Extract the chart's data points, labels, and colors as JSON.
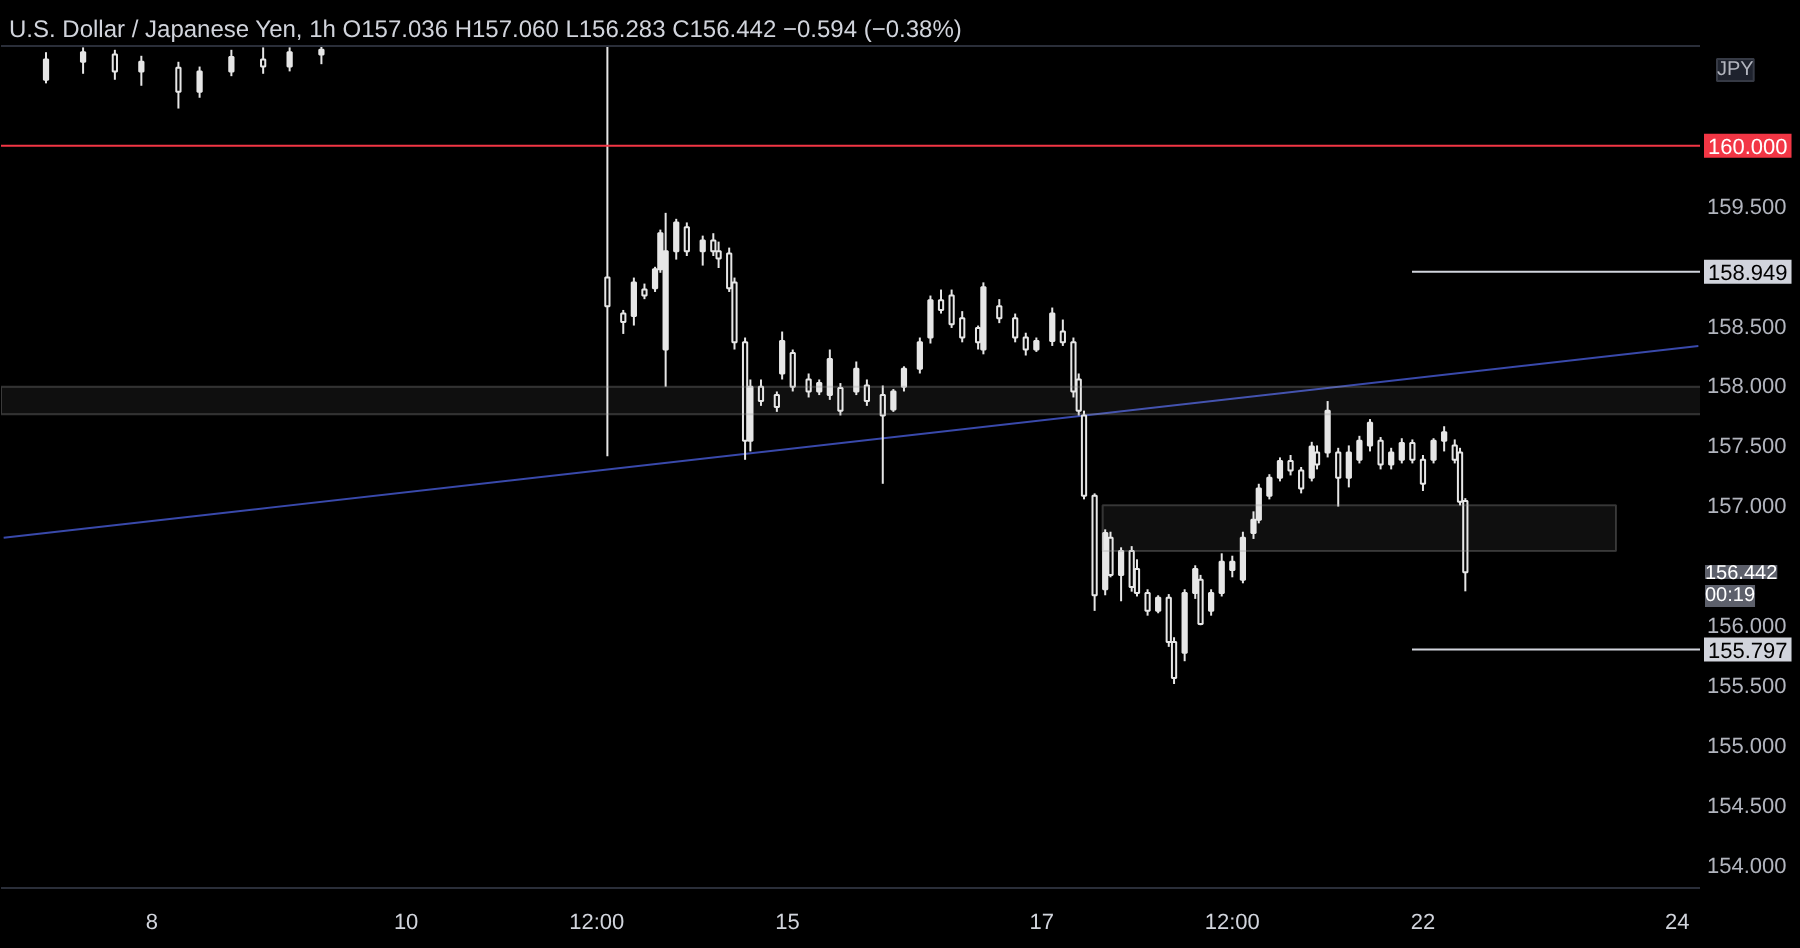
{
  "chart_data": {
    "type": "candlestick",
    "title": "U.S. Dollar / Japanese Yen, 1h",
    "subtitle": "O157.036 H157.060 L156.283 C156.442 −0.594 (−0.38%)",
    "color": "#e6e6e6",
    "categories": [
      null,
      null,
      null,
      null,
      null,
      null,
      null,
      null,
      null,
      null,
      null,
      null,
      null,
      null,
      null,
      null,
      null,
      null,
      null,
      null,
      null,
      null,
      null,
      null,
      null,
      null,
      null,
      null,
      "8",
      null,
      null,
      null,
      null,
      null,
      null,
      null,
      null,
      null,
      null,
      null,
      null,
      null,
      null,
      null,
      null,
      null,
      null,
      null,
      null,
      null,
      null,
      null,
      null,
      null,
      null,
      null,
      null,
      null,
      null,
      null,
      null,
      null,
      null,
      null,
      null,
      null,
      null,
      null,
      null,
      null,
      null,
      null,
      null,
      null,
      null,
      null,
      "10",
      null,
      null,
      null,
      null,
      null,
      null,
      null,
      null,
      null,
      null,
      null,
      null,
      null,
      null,
      null,
      null,
      null,
      null,
      null,
      null,
      null,
      null,
      null,
      null,
      null,
      null,
      null,
      null,
      null,
      null,
      null,
      null,
      null,
      null,
      null,
      "12:00",
      null,
      null,
      null,
      null,
      null,
      null,
      null,
      null,
      null,
      null,
      null,
      null,
      null,
      null,
      null,
      null,
      null,
      null,
      null,
      null,
      null,
      null,
      null,
      null,
      null,
      null,
      null,
      null,
      null,
      null,
      null,
      null,
      null,
      null,
      null,
      "15",
      null,
      null,
      null,
      null,
      null,
      null,
      null,
      null,
      null,
      null,
      null,
      null,
      null,
      null,
      null,
      null,
      null,
      null,
      null,
      null,
      null,
      null,
      null,
      null,
      null,
      null,
      null,
      null,
      null,
      null,
      null,
      null,
      null,
      null,
      null,
      null,
      null,
      null,
      null,
      null,
      null,
      null,
      null,
      null,
      null,
      null,
      null,
      "17",
      null,
      null,
      null,
      null,
      null,
      null,
      null,
      null,
      null,
      null,
      null,
      null,
      null,
      null,
      null,
      null,
      null,
      null,
      null,
      null,
      null,
      null,
      null,
      null,
      null,
      null,
      null,
      null,
      null,
      null,
      null,
      null,
      null,
      null,
      null,
      "12:00",
      null,
      null,
      null,
      null,
      null,
      null,
      null,
      null,
      null,
      null,
      null,
      null,
      null,
      null,
      null,
      null,
      null,
      null,
      null,
      null,
      null,
      null,
      null,
      null,
      null,
      null,
      null,
      null,
      null,
      null,
      null,
      null,
      null,
      null,
      null,
      "22",
      null,
      null,
      null,
      null,
      null,
      null,
      null,
      null,
      null,
      null,
      null,
      null,
      null,
      null,
      null,
      null,
      null,
      null,
      null,
      null,
      null,
      null,
      null,
      null,
      null,
      null,
      null,
      null,
      null,
      null,
      null,
      null,
      null,
      null,
      null,
      null,
      null,
      null,
      null,
      null,
      null,
      null,
      null,
      null,
      null,
      null,
      null,
      "24",
      null,
      null,
      null,
      null
    ],
    "ohlc": [
      null,
      null,
      null,
      null,
      null,
      null,
      null,
      null,
      [
        160.55,
        160.78,
        160.52,
        160.72
      ],
      null,
      null,
      null,
      null,
      null,
      null,
      [
        160.7,
        160.82,
        160.6,
        160.78
      ],
      null,
      null,
      null,
      null,
      null,
      [
        160.76,
        160.8,
        160.55,
        160.62
      ],
      null,
      null,
      null,
      null,
      [
        160.62,
        160.75,
        160.5,
        160.7
      ],
      null,
      null,
      null,
      null,
      null,
      null,
      [
        160.65,
        160.7,
        160.31,
        160.45
      ],
      null,
      null,
      null,
      [
        160.45,
        160.66,
        160.4,
        160.62
      ],
      null,
      null,
      null,
      null,
      null,
      [
        160.62,
        160.8,
        160.58,
        160.74
      ],
      null,
      null,
      null,
      null,
      null,
      [
        160.72,
        160.82,
        160.6,
        160.66
      ],
      null,
      null,
      null,
      null,
      [
        160.66,
        160.82,
        160.62,
        160.78
      ],
      null,
      null,
      null,
      null,
      null,
      [
        160.76,
        160.83,
        160.68,
        160.8
      ],
      null,
      null,
      null,
      null,
      null,
      null,
      null,
      null,
      null,
      null,
      null,
      null,
      null,
      null,
      null,
      null,
      null,
      null,
      null,
      null,
      null,
      null,
      null,
      null,
      null,
      null,
      null,
      null,
      null,
      null,
      null,
      null,
      null,
      null,
      null,
      null,
      null,
      null,
      null,
      null,
      null,
      null,
      null,
      null,
      null,
      null,
      null,
      null,
      null,
      null,
      null,
      null,
      null,
      [
        158.9,
        160.84,
        157.41,
        158.66
      ],
      null,
      null,
      [
        158.6,
        158.63,
        158.43,
        158.53
      ],
      null,
      [
        158.58,
        158.9,
        158.5,
        158.86
      ],
      null,
      [
        158.8,
        158.85,
        158.72,
        158.75
      ],
      null,
      [
        158.81,
        158.99,
        158.78,
        158.97
      ],
      [
        158.97,
        159.3,
        158.94,
        159.27
      ],
      [
        158.3,
        159.44,
        157.99,
        159.12
      ],
      null,
      [
        159.12,
        159.39,
        159.05,
        159.36
      ],
      null,
      [
        159.32,
        159.36,
        159.08,
        159.12
      ],
      null,
      null,
      [
        159.12,
        159.25,
        159.0,
        159.21
      ],
      null,
      [
        159.21,
        159.27,
        159.08,
        159.12
      ],
      [
        159.12,
        159.2,
        158.98,
        159.06
      ],
      null,
      [
        159.1,
        159.15,
        158.78,
        158.81
      ],
      [
        158.86,
        158.9,
        158.3,
        158.36
      ],
      null,
      [
        158.36,
        158.4,
        157.38,
        157.54
      ],
      [
        157.54,
        158.05,
        157.45,
        157.99
      ],
      null,
      [
        157.99,
        158.05,
        157.83,
        157.87
      ],
      null,
      null,
      [
        157.92,
        157.95,
        157.78,
        157.82
      ],
      [
        158.1,
        158.45,
        158.05,
        158.37
      ],
      null,
      [
        158.27,
        158.3,
        157.95,
        157.99
      ],
      null,
      null,
      [
        158.05,
        158.1,
        157.9,
        157.95
      ],
      null,
      [
        157.95,
        158.05,
        157.92,
        158.02
      ],
      null,
      [
        157.92,
        158.3,
        157.88,
        158.22
      ],
      null,
      [
        157.98,
        158.02,
        157.75,
        157.79
      ],
      null,
      null,
      [
        157.95,
        158.2,
        157.92,
        158.14
      ],
      null,
      [
        158.0,
        158.05,
        157.83,
        157.87
      ],
      null,
      null,
      [
        157.92,
        158.0,
        157.18,
        157.75
      ],
      null,
      [
        157.8,
        157.97,
        157.78,
        157.95
      ],
      null,
      [
        157.99,
        158.16,
        157.95,
        158.14
      ],
      null,
      null,
      [
        158.14,
        158.4,
        158.1,
        158.36
      ],
      null,
      [
        158.4,
        158.75,
        158.35,
        158.71
      ],
      null,
      [
        158.71,
        158.8,
        158.6,
        158.63
      ],
      null,
      [
        158.75,
        158.8,
        158.48,
        158.51
      ],
      null,
      [
        158.56,
        158.62,
        158.36,
        158.4
      ],
      null,
      null,
      [
        158.48,
        158.5,
        158.3,
        158.36
      ],
      [
        158.3,
        158.86,
        158.26,
        158.82
      ],
      null,
      null,
      [
        158.66,
        158.72,
        158.52,
        158.56
      ],
      null,
      null,
      [
        158.56,
        158.6,
        158.36,
        158.4
      ],
      null,
      [
        158.4,
        158.44,
        158.25,
        158.3
      ],
      null,
      [
        158.3,
        158.4,
        158.28,
        158.37
      ],
      null,
      null,
      [
        158.37,
        158.65,
        158.33,
        158.6
      ],
      null,
      [
        158.45,
        158.55,
        158.33,
        158.36
      ],
      null,
      [
        158.36,
        158.4,
        157.9,
        157.95
      ],
      [
        158.05,
        158.1,
        157.75,
        157.79
      ],
      [
        157.75,
        157.79,
        157.05,
        157.08
      ],
      null,
      [
        157.08,
        157.1,
        156.12,
        156.25
      ],
      null,
      [
        156.3,
        156.8,
        156.25,
        156.77
      ],
      [
        156.73,
        156.78,
        156.4,
        156.42
      ],
      null,
      [
        156.42,
        156.65,
        156.2,
        156.62
      ],
      null,
      [
        156.62,
        156.66,
        156.28,
        156.32
      ],
      [
        156.47,
        156.55,
        156.24,
        156.27
      ],
      null,
      [
        156.27,
        156.3,
        156.08,
        156.12
      ],
      null,
      [
        156.12,
        156.25,
        156.1,
        156.23
      ],
      null,
      [
        156.23,
        156.26,
        155.82,
        155.86
      ],
      [
        155.86,
        155.9,
        155.51,
        155.56
      ],
      null,
      [
        155.77,
        156.3,
        155.7,
        156.27
      ],
      null,
      [
        156.27,
        156.5,
        156.22,
        156.47
      ],
      [
        156.38,
        156.42,
        156.0,
        156.01
      ],
      null,
      [
        156.12,
        156.3,
        156.08,
        156.27
      ],
      null,
      [
        156.27,
        156.6,
        156.24,
        156.53
      ],
      null,
      [
        156.46,
        156.58,
        156.4,
        156.53
      ],
      null,
      [
        156.38,
        156.78,
        156.35,
        156.73
      ],
      null,
      [
        156.77,
        156.95,
        156.72,
        156.88
      ],
      [
        156.88,
        157.18,
        156.85,
        157.14
      ],
      null,
      [
        157.08,
        157.26,
        157.05,
        157.23
      ],
      null,
      [
        157.23,
        157.4,
        157.2,
        157.37
      ],
      null,
      [
        157.37,
        157.42,
        157.25,
        157.29
      ],
      null,
      [
        157.29,
        157.32,
        157.1,
        157.14
      ],
      null,
      [
        157.23,
        157.53,
        157.2,
        157.49
      ],
      [
        157.44,
        157.5,
        157.3,
        157.34
      ],
      null,
      [
        157.44,
        157.87,
        157.4,
        157.79
      ],
      null,
      [
        157.44,
        157.48,
        156.99,
        157.23
      ],
      null,
      [
        157.23,
        157.5,
        157.15,
        157.44
      ],
      null,
      [
        157.38,
        157.58,
        157.35,
        157.54
      ],
      null,
      [
        157.5,
        157.72,
        157.45,
        157.69
      ],
      null,
      [
        157.54,
        157.57,
        157.3,
        157.34
      ],
      null,
      [
        157.34,
        157.48,
        157.3,
        157.44
      ],
      null,
      [
        157.38,
        157.56,
        157.35,
        157.52
      ],
      null,
      [
        157.52,
        157.55,
        157.35,
        157.38
      ],
      null,
      [
        157.38,
        157.42,
        157.12,
        157.18
      ],
      null,
      [
        157.38,
        157.56,
        157.35,
        157.54
      ],
      null,
      [
        157.54,
        157.66,
        157.45,
        157.61
      ],
      null,
      [
        157.5,
        157.55,
        157.35,
        157.38
      ],
      [
        157.44,
        157.48,
        157.0,
        157.03
      ],
      [
        157.036,
        157.06,
        156.283,
        156.442
      ],
      null,
      null,
      null,
      null,
      null,
      null,
      null,
      null,
      null,
      null,
      null,
      null,
      null,
      null,
      null,
      null,
      null,
      null,
      null,
      null,
      null,
      null,
      null,
      null,
      null,
      null,
      null,
      null,
      null,
      null,
      null,
      null,
      null,
      null,
      null,
      null,
      null,
      null,
      null,
      null,
      null,
      null,
      null,
      null
    ],
    "series": [
      {
        "type": "line",
        "color": "#3949ab",
        "values": [
          156.73,
          null,
          null,
          null,
          null,
          null,
          null,
          null,
          null,
          null,
          null,
          null,
          null,
          null,
          null,
          null,
          null,
          null,
          null,
          null,
          null,
          null,
          null,
          null,
          null,
          null,
          null,
          null,
          null,
          null,
          null,
          null,
          null,
          null,
          null,
          null,
          null,
          null,
          null,
          null,
          null,
          null,
          null,
          null,
          null,
          null,
          null,
          null,
          null,
          null,
          null,
          null,
          null,
          null,
          null,
          null,
          null,
          null,
          null,
          null,
          null,
          null,
          null,
          null,
          null,
          null,
          null,
          null,
          null,
          null,
          null,
          null,
          null,
          null,
          null,
          null,
          null,
          null,
          null,
          null,
          null,
          null,
          null,
          null,
          null,
          null,
          null,
          null,
          null,
          null,
          null,
          null,
          null,
          null,
          null,
          null,
          null,
          null,
          null,
          null,
          null,
          null,
          null,
          null,
          null,
          null,
          null,
          null,
          null,
          null,
          null,
          null,
          null,
          null,
          null,
          null,
          null,
          null,
          null,
          null,
          null,
          null,
          null,
          null,
          null,
          null,
          null,
          null,
          null,
          null,
          null,
          null,
          null,
          null,
          null,
          null,
          null,
          null,
          null,
          null,
          null,
          null,
          null,
          null,
          null,
          null,
          null,
          null,
          null,
          null,
          null,
          null,
          null,
          null,
          null,
          null,
          null,
          null,
          null,
          null,
          null,
          null,
          null,
          null,
          null,
          null,
          null,
          null,
          null,
          null,
          null,
          null,
          null,
          null,
          null,
          null,
          null,
          null,
          null,
          null,
          null,
          null,
          null,
          null,
          null,
          null,
          null,
          null,
          null,
          null,
          null,
          null,
          null,
          null,
          null,
          null,
          null,
          null,
          null,
          null,
          null,
          null,
          null,
          null,
          null,
          null,
          null,
          null,
          null,
          null,
          null,
          null,
          null,
          null,
          null,
          null,
          null,
          null,
          null,
          null,
          null,
          null,
          null,
          null,
          null,
          null,
          null,
          null,
          null,
          null,
          null,
          null,
          null,
          null,
          null,
          null,
          null,
          null,
          null,
          null,
          null,
          null,
          null,
          null,
          null,
          null,
          null,
          null,
          null,
          null,
          null,
          null,
          null,
          null,
          null,
          null,
          null,
          null,
          null,
          null,
          null,
          null,
          null,
          null,
          null,
          null,
          null,
          null,
          null,
          null,
          null,
          null,
          null,
          null,
          null,
          null,
          null,
          null,
          null,
          null,
          null,
          null,
          null,
          null,
          null,
          null,
          null,
          null,
          null,
          null,
          null,
          null,
          null,
          null,
          null,
          null,
          null,
          null,
          null,
          null,
          null,
          null,
          null,
          null,
          null,
          null,
          null,
          null,
          null,
          null,
          null,
          null,
          null,
          null,
          null,
          null,
          null,
          null,
          null,
          null,
          158.33
        ]
      }
    ],
    "ylim": [
      153.8,
      160.84
    ],
    "yticks": [
      {
        "value": 154,
        "label": "154.000"
      },
      {
        "value": 154.5,
        "label": "154.500"
      },
      {
        "value": 155,
        "label": "155.000"
      },
      {
        "value": 155.5,
        "label": "155.500"
      },
      {
        "value": 156,
        "label": "156.000"
      },
      {
        "value": 157,
        "label": "157.000"
      },
      {
        "value": 157.5,
        "label": "157.500"
      },
      {
        "value": 158,
        "label": "158.000"
      },
      {
        "value": 158.5,
        "label": "158.500"
      },
      {
        "value": 159.5,
        "label": "159.500"
      }
    ],
    "ref_lines": [
      {
        "axis": "y",
        "value": 160,
        "label": "160.000",
        "color": "#f23645"
      },
      {
        "axis": "y",
        "value": 158.949,
        "label": "158.949",
        "color": "#d1d4dc"
      },
      {
        "axis": "y",
        "value": 155.797,
        "label": "155.797",
        "color": "#d1d4dc"
      }
    ],
    "bands": [
      {
        "axis": "y",
        "from": 157.76,
        "to": 157.99,
        "color": "#9e9e9e"
      },
      {
        "axis": "y",
        "from": 156.62,
        "to": 157.0,
        "color": "#9e9e9e"
      }
    ],
    "annotations": [
      "JPY",
      "156.442",
      "00:19"
    ],
    "grid": false
  }
}
